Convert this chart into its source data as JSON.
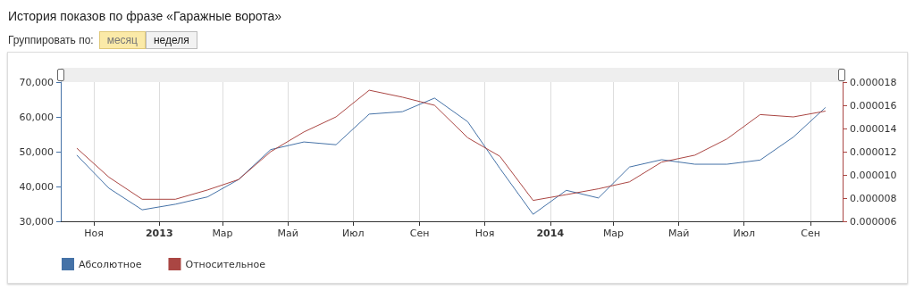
{
  "chart_data": {
    "type": "line",
    "title": "История показов по фразе «Гаражные ворота»",
    "annotations": [
      "Группировать по:",
      "месяц",
      "неделя"
    ],
    "x": [
      "2012-10-16",
      "2012-11-15",
      "2012-12-16",
      "2013-01-16",
      "2013-02-15",
      "2013-03-16",
      "2013-04-15",
      "2013-05-16",
      "2013-06-15",
      "2013-07-16",
      "2013-08-16",
      "2013-09-15",
      "2013-10-16",
      "2013-11-15",
      "2013-12-16",
      "2014-01-16",
      "2014-02-15",
      "2014-03-16",
      "2014-04-15",
      "2014-05-16",
      "2014-06-15",
      "2014-07-16",
      "2014-08-16",
      "2014-09-15"
    ],
    "series": [
      {
        "name": "Абсолютное",
        "color": "#4572a7",
        "values": [
          49000,
          39500,
          33300,
          34900,
          37000,
          42000,
          50600,
          52800,
          52000,
          60800,
          61500,
          65400,
          58600,
          45200,
          32000,
          38900,
          36700,
          45600,
          47700,
          46400,
          46400,
          47600,
          54200,
          62700
        ]
      },
      {
        "name": "Относительное",
        "color": "#aa4643",
        "axis": "y2",
        "values": [
          1.23e-05,
          9.8e-06,
          7.9e-06,
          7.9e-06,
          8.7e-06,
          9.6e-06,
          1.2e-05,
          1.37e-05,
          1.5e-05,
          1.73e-05,
          1.67e-05,
          1.6e-05,
          1.32e-05,
          1.16e-05,
          7.8e-06,
          8.3e-06,
          8.8e-06,
          9.4e-06,
          1.11e-05,
          1.17e-05,
          1.31e-05,
          1.52e-05,
          1.5e-05,
          1.55e-05
        ]
      }
    ],
    "xlim": [
      "2012-10-01",
      "2014-10-01"
    ],
    "xticks": [
      {
        "value": "2012-11-01",
        "label": "Ноя"
      },
      {
        "value": "2013-01-01",
        "label": "2013"
      },
      {
        "value": "2013-03-01",
        "label": "Мар"
      },
      {
        "value": "2013-05-01",
        "label": "Май"
      },
      {
        "value": "2013-07-01",
        "label": "Июл"
      },
      {
        "value": "2013-09-01",
        "label": "Сен"
      },
      {
        "value": "2013-11-01",
        "label": "Ноя"
      },
      {
        "value": "2014-01-01",
        "label": "2014"
      },
      {
        "value": "2014-03-01",
        "label": "Мар"
      },
      {
        "value": "2014-05-01",
        "label": "Май"
      },
      {
        "value": "2014-07-01",
        "label": "Июл"
      },
      {
        "value": "2014-09-01",
        "label": "Сен"
      }
    ],
    "ylim": [
      30000,
      70000
    ],
    "yticks": [
      {
        "value": 30000,
        "label": "30,000"
      },
      {
        "value": 40000,
        "label": "40,000"
      },
      {
        "value": 50000,
        "label": "50,000"
      },
      {
        "value": 60000,
        "label": "60,000"
      },
      {
        "value": 70000,
        "label": "70,000"
      }
    ],
    "y2lim": [
      6e-06,
      1.8e-05
    ],
    "y2ticks": [
      {
        "value": 6e-06,
        "label": "0.000006"
      },
      {
        "value": 8e-06,
        "label": "0.000008"
      },
      {
        "value": 1e-05,
        "label": "0.000010"
      },
      {
        "value": 1.2e-05,
        "label": "0.000012"
      },
      {
        "value": 1.4e-05,
        "label": "0.000014"
      },
      {
        "value": 1.6e-05,
        "label": "0.000016"
      },
      {
        "value": 1.8e-05,
        "label": "0.000018"
      }
    ],
    "grid": "x",
    "legend": "bottom left",
    "marker": "none",
    "line_style": "solid"
  }
}
